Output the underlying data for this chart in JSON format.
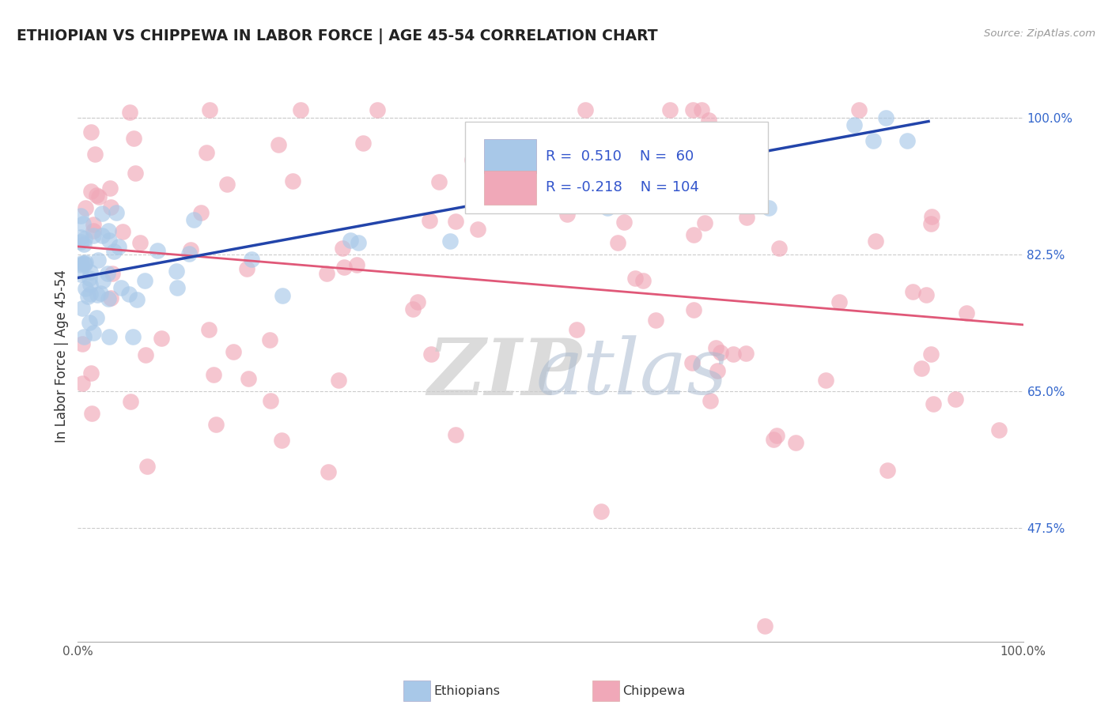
{
  "title": "ETHIOPIAN VS CHIPPEWA IN LABOR FORCE | AGE 45-54 CORRELATION CHART",
  "source": "Source: ZipAtlas.com",
  "ylabel": "In Labor Force | Age 45-54",
  "ylabel_ticks": [
    47.5,
    65.0,
    82.5,
    100.0
  ],
  "ylabel_tick_labels": [
    "47.5%",
    "65.0%",
    "82.5%",
    "100.0%"
  ],
  "xmin": 0.0,
  "xmax": 100.0,
  "ymin": 33.0,
  "ymax": 106.0,
  "legend_r_blue": "0.510",
  "legend_n_blue": "60",
  "legend_r_pink": "-0.218",
  "legend_n_pink": "104",
  "blue_color": "#A8C8E8",
  "pink_color": "#F0A8B8",
  "blue_line_color": "#2244AA",
  "pink_line_color": "#E05878",
  "blue_line_x": [
    0,
    90
  ],
  "blue_line_y": [
    79.5,
    99.5
  ],
  "pink_line_x": [
    0,
    100
  ],
  "pink_line_y": [
    83.5,
    73.5
  ],
  "watermark_zip": "ZIP",
  "watermark_atlas": "atlas"
}
